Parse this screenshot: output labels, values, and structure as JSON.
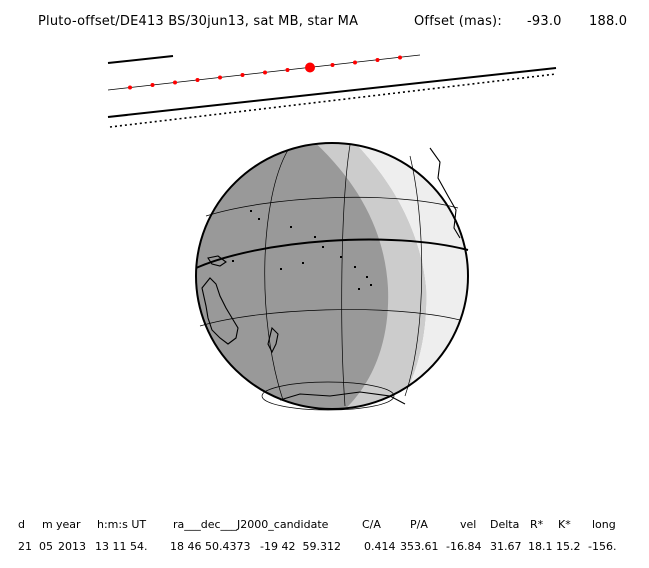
{
  "header": {
    "title": "Pluto-offset/DE413 BS/30jun13, sat MB, star MA",
    "offset_label": "Offset (mas):",
    "offset_ra": "-93.0",
    "offset_dec": "188.0"
  },
  "track": {
    "dot_color": "#ff0000"
  },
  "globe": {
    "ocean_dark_color": "#999999",
    "ocean_light_color": "#cccccc",
    "ocean_white_color": "#eeeeee"
  },
  "table": {
    "headers": {
      "d": "d",
      "m": "m",
      "year": "year",
      "hms": "h:m:s UT",
      "radec": "ra___dec___J2000_candidate",
      "ca": "C/A",
      "pa": "P/A",
      "vel": "vel",
      "delta": "Delta",
      "rstar": "R*",
      "kstar": "K*",
      "long": "long"
    },
    "values": {
      "d": "21",
      "m": "05",
      "year": "2013",
      "hms": "13 11 54.",
      "ra": "18 46 50.4373",
      "dec": "-19 42  59.312",
      "ca": "0.414",
      "pa": "353.61",
      "vel": "-16.84",
      "delta": "31.67",
      "rstar": "18.1",
      "kstar": "15.2",
      "long": "-156."
    }
  }
}
